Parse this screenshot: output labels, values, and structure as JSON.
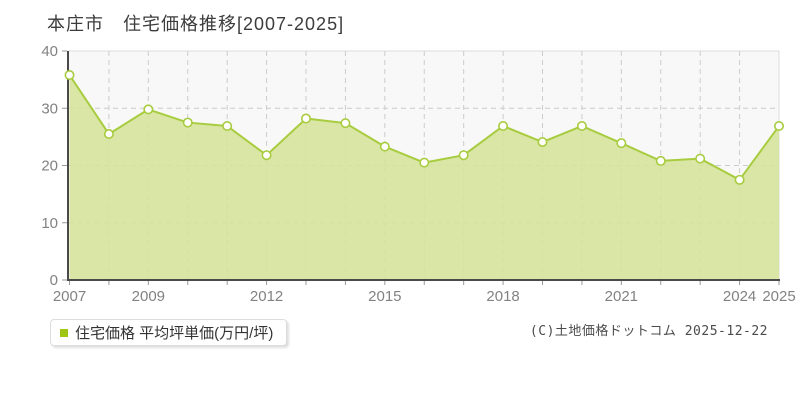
{
  "title": "本庄市　住宅価格推移[2007-2025]",
  "legend": {
    "label": "住宅価格 平均坪単価(万円/坪)",
    "marker_color": "#9fc613"
  },
  "copyright": "(C)土地価格ドットコム 2025-12-22",
  "chart_data": {
    "type": "area",
    "title": "本庄市　住宅価格推移[2007-2025]",
    "x": [
      2007,
      2008,
      2009,
      2010,
      2011,
      2012,
      2013,
      2014,
      2015,
      2016,
      2017,
      2018,
      2019,
      2020,
      2021,
      2022,
      2023,
      2024,
      2025
    ],
    "series": [
      {
        "name": "住宅価格 平均坪単価(万円/坪)",
        "values": [
          35.8,
          25.5,
          29.8,
          27.5,
          26.9,
          21.8,
          28.2,
          27.4,
          23.3,
          20.5,
          21.8,
          26.9,
          24.1,
          26.9,
          23.9,
          20.8,
          21.2,
          17.5,
          26.9
        ]
      }
    ],
    "xlabel": "",
    "ylabel": "平均坪単価(万円/坪)",
    "ylim": [
      0,
      40
    ],
    "yticks": [
      0,
      10,
      20,
      30,
      40
    ],
    "ytick_labels": [
      "0",
      "10",
      "20",
      "30",
      "40"
    ],
    "xtick_years": [
      2007,
      2009,
      2012,
      2015,
      2018,
      2021,
      2024,
      2025
    ],
    "xtick_labels": [
      "2007",
      "2009",
      "2012",
      "2015",
      "2018",
      "2021",
      "2024",
      "2025"
    ],
    "grid": true,
    "legend_position": "bottom-left",
    "colors": {
      "line": "#a8cc3f",
      "fill": "#d6e39b",
      "marker_fill": "#ffffff",
      "plot_bg": "#f8f8f8",
      "border": "#dcdcdc",
      "grid": "#cccccc",
      "axis": "#4a4a4a",
      "tick": "#999999",
      "tick_text": "#828282"
    }
  }
}
